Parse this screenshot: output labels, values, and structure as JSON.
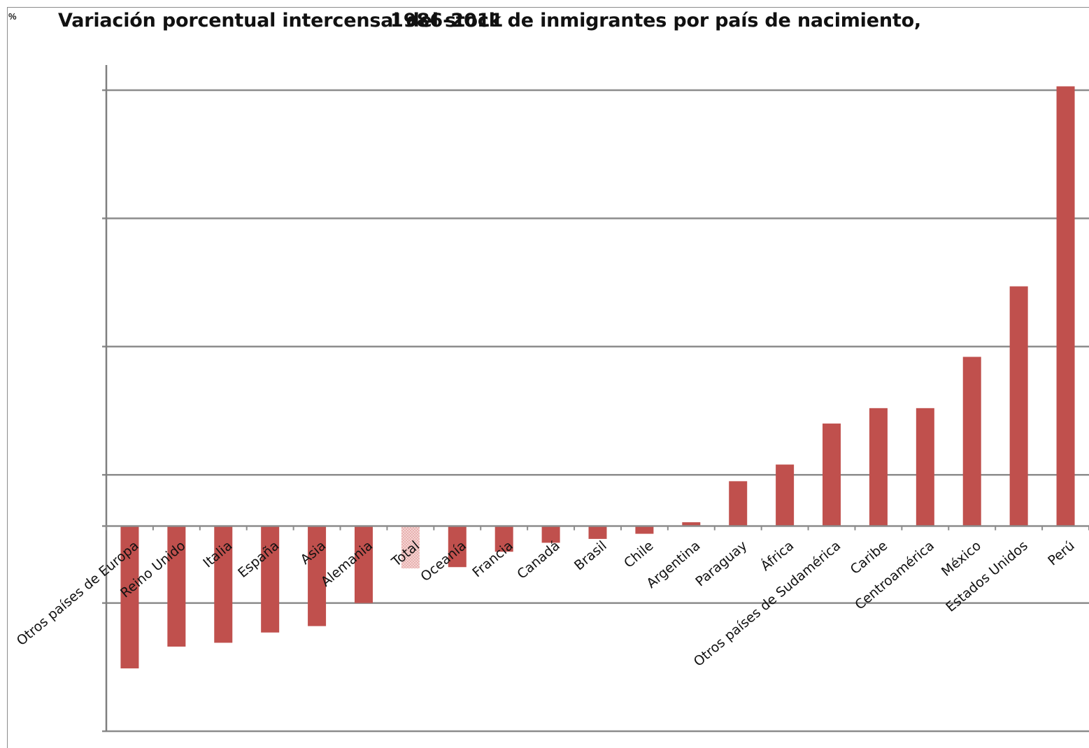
{
  "chart_data": {
    "type": "bar",
    "title": "Variación porcentual intercensal del stock de inmigrantes por país de nacimiento,",
    "title_year": "1986-2011",
    "corner_text": "%",
    "categories": [
      "Otros países de Europa",
      "Reino Unido",
      "Italia",
      "España",
      "Asia",
      "Alemania",
      "Total",
      "Oceanía",
      "Francia",
      "Canadá",
      "Brasil",
      "Chile",
      "Argentina",
      "Paraguay",
      "África",
      "Otros países de Sudamérica",
      "Caribe",
      "Centroamérica",
      "México",
      "Estados Unidos",
      "Perú"
    ],
    "values": [
      -111,
      -94,
      -91,
      -83,
      -78,
      -60,
      -33,
      -32,
      -20,
      -13,
      -10,
      -6,
      3,
      35,
      48,
      80,
      92,
      92,
      132,
      187,
      343
    ],
    "highlight_category": "Total",
    "ylim": [
      -160,
      340
    ],
    "gridlines": [
      -60,
      40,
      140,
      240,
      340
    ],
    "grid": true,
    "xlabel": "",
    "ylabel": "",
    "legend": "none",
    "colors": {
      "bar": "#c0504d",
      "total_bar": "#f2c6c5",
      "grid": "#8c8c8c",
      "axis": "#7f7f7f"
    }
  }
}
